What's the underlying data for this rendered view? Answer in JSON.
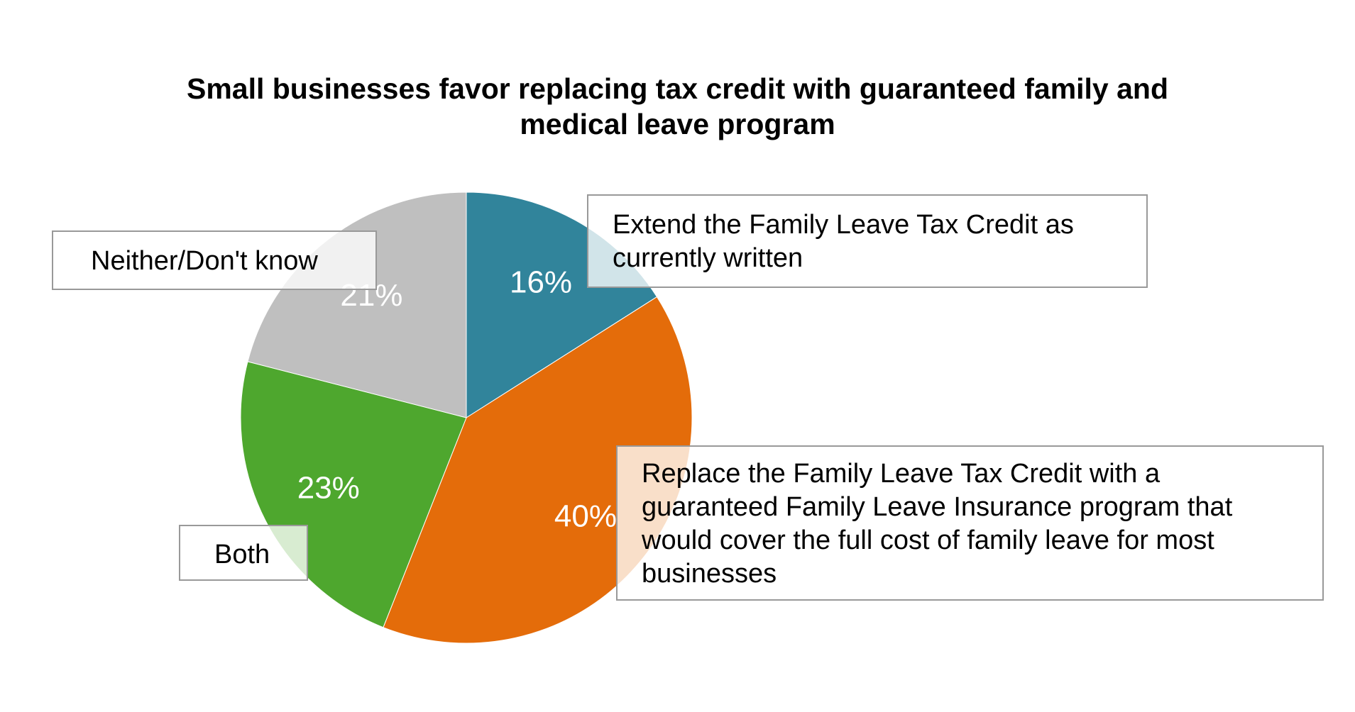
{
  "chart_data": {
    "type": "pie",
    "title_line1": "Small businesses favor replacing tax credit with guaranteed family and",
    "title_line2": "medical leave program",
    "slices": [
      {
        "label": "Extend the Family Leave Tax Credit as currently written",
        "label_line1": "Extend the Family Leave Tax Credit as",
        "label_line2": "currently written",
        "value": 16,
        "display": "16%",
        "color": "#31849b"
      },
      {
        "label": "Replace the Family Leave Tax Credit with a guaranteed Family Leave Insurance program that would cover the full cost of family leave for most businesses",
        "label_line1": "Replace the Family Leave Tax Credit with a",
        "label_line2": "guaranteed Family Leave Insurance program that",
        "label_line3": "would cover the full cost of family leave for most",
        "label_line4": "businesses",
        "value": 40,
        "display": "40%",
        "color": "#e46c0a"
      },
      {
        "label": "Both",
        "value": 23,
        "display": "23%",
        "color": "#4ea72e"
      },
      {
        "label": "Neither/Don't know",
        "value": 21,
        "display": "21%",
        "color": "#bfbfbf"
      }
    ],
    "start_angle": "12 o'clock",
    "direction": "clockwise",
    "value_label_color": "#ffffff"
  }
}
